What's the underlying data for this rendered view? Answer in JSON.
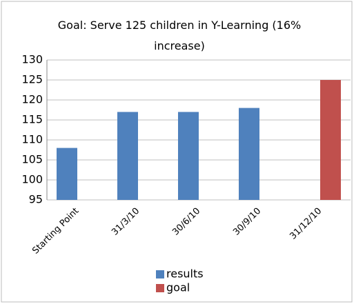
{
  "chart_data": {
    "type": "bar",
    "title": "Goal: Serve 125 children in Y-Learning (16% increase)",
    "categories": [
      "Starting Point",
      "31/3/10",
      "30/6/10",
      "30/9/10",
      "31/12/10"
    ],
    "series": [
      {
        "name": "results",
        "color": "#4f81bd",
        "values": [
          108,
          117,
          117,
          118,
          null
        ]
      },
      {
        "name": "goal",
        "color": "#c0504d",
        "values": [
          null,
          null,
          null,
          null,
          125
        ]
      }
    ],
    "ylim": [
      95,
      130
    ],
    "yticks": [
      95,
      100,
      105,
      110,
      115,
      120,
      125,
      130
    ],
    "grid": true
  }
}
